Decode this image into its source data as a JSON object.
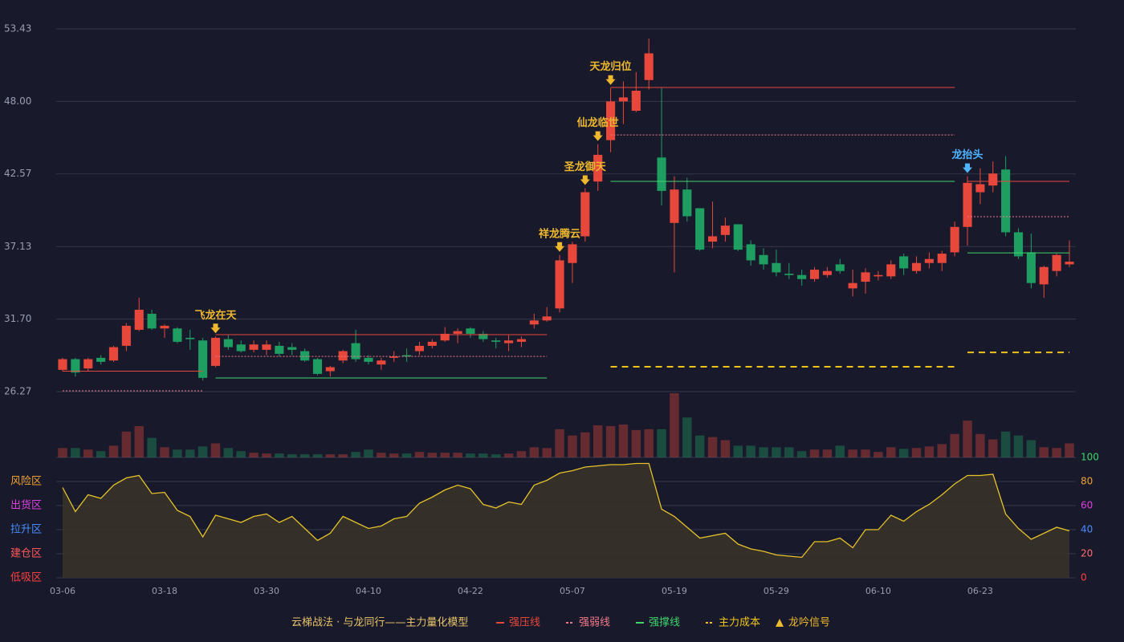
{
  "chart_data": [
    {
      "type": "candlestick",
      "categories": [
        "03-06",
        null,
        null,
        null,
        null,
        null,
        null,
        null,
        "03-18",
        null,
        null,
        null,
        null,
        null,
        null,
        null,
        "03-30",
        null,
        null,
        null,
        null,
        null,
        null,
        null,
        "04-10",
        null,
        null,
        null,
        null,
        null,
        null,
        null,
        "04-22",
        null,
        null,
        null,
        null,
        null,
        null,
        null,
        "05-07",
        null,
        null,
        null,
        null,
        null,
        null,
        null,
        "05-19",
        null,
        null,
        null,
        null,
        null,
        null,
        null,
        "05-29",
        null,
        null,
        null,
        null,
        null,
        null,
        null,
        "06-10",
        null,
        null,
        null,
        null,
        null,
        null,
        null,
        "06-23",
        null,
        null,
        null,
        null,
        null,
        null,
        null
      ],
      "open": [
        27.9,
        28.7,
        28.0,
        28.8,
        28.6,
        29.7,
        30.9,
        32.1,
        31.0,
        31.0,
        30.3,
        30.1,
        28.2,
        30.2,
        29.8,
        29.4,
        29.4,
        29.7,
        29.6,
        29.3,
        28.7,
        27.8,
        28.6,
        29.9,
        28.8,
        28.3,
        28.8,
        29.0,
        29.3,
        29.7,
        30.1,
        30.6,
        31.0,
        30.6,
        30.1,
        29.9,
        30.0,
        31.3,
        31.6,
        32.5,
        35.9,
        37.9,
        42.0,
        45.1,
        48.0,
        47.3,
        49.6,
        43.8,
        38.9,
        41.4,
        40.0,
        37.5,
        38.0,
        38.8,
        37.3,
        36.5,
        35.9,
        35.1,
        35.0,
        34.7,
        35.0,
        35.8,
        34.0,
        34.5,
        34.9,
        34.9,
        36.4,
        35.3,
        35.9,
        35.9,
        36.7,
        38.6,
        41.2,
        41.7,
        42.9,
        38.2,
        36.7,
        34.3,
        35.3,
        35.8
      ],
      "high": [
        28.8,
        28.8,
        28.8,
        29.0,
        29.7,
        31.4,
        33.3,
        32.4,
        31.3,
        31.1,
        30.9,
        30.3,
        30.4,
        30.5,
        30.1,
        30.1,
        30.1,
        30.0,
        29.9,
        29.5,
        28.8,
        28.2,
        29.4,
        30.9,
        29.0,
        28.8,
        29.3,
        29.5,
        30.0,
        30.2,
        31.1,
        31.0,
        31.1,
        30.8,
        30.3,
        30.5,
        30.4,
        32.1,
        32.6,
        36.5,
        37.5,
        41.5,
        44.8,
        49.0,
        49.5,
        50.2,
        52.7,
        49.0,
        42.4,
        42.3,
        40.0,
        40.5,
        39.3,
        38.8,
        37.6,
        37.0,
        36.9,
        35.9,
        35.4,
        35.6,
        35.6,
        36.2,
        35.4,
        35.5,
        35.3,
        36.1,
        36.6,
        36.4,
        36.7,
        36.8,
        39.0,
        42.4,
        43.0,
        43.5,
        43.9,
        38.5,
        38.1,
        35.7,
        36.6,
        37.6
      ],
      "low": [
        27.8,
        27.4,
        27.8,
        28.3,
        28.5,
        29.3,
        30.8,
        30.9,
        30.3,
        29.9,
        29.4,
        27.1,
        28.1,
        29.4,
        29.2,
        29.2,
        29.0,
        28.9,
        29.0,
        28.5,
        27.5,
        27.4,
        28.4,
        28.5,
        28.3,
        27.9,
        28.5,
        28.5,
        29.0,
        29.5,
        30.0,
        29.9,
        30.3,
        30.0,
        29.5,
        29.3,
        29.6,
        31.0,
        31.5,
        32.2,
        34.4,
        37.5,
        41.3,
        44.2,
        46.3,
        47.2,
        48.9,
        40.2,
        35.2,
        39.0,
        36.8,
        37.0,
        37.5,
        36.8,
        35.7,
        35.4,
        34.9,
        34.7,
        34.2,
        34.5,
        34.8,
        35.1,
        33.4,
        33.6,
        34.6,
        34.7,
        35.0,
        35.1,
        35.5,
        35.3,
        36.4,
        37.2,
        40.3,
        41.2,
        37.9,
        36.2,
        34.0,
        33.3,
        34.9,
        35.6
      ],
      "close": [
        28.7,
        27.7,
        28.7,
        28.5,
        29.6,
        31.2,
        32.4,
        31.0,
        31.2,
        30.0,
        30.2,
        27.3,
        30.3,
        29.6,
        29.3,
        29.8,
        29.8,
        29.1,
        29.4,
        28.6,
        27.6,
        28.1,
        29.3,
        28.7,
        28.5,
        28.6,
        28.9,
        28.9,
        29.7,
        30.0,
        30.6,
        30.8,
        30.6,
        30.2,
        30.0,
        30.1,
        30.2,
        31.6,
        31.9,
        36.1,
        37.3,
        41.2,
        44.0,
        48.0,
        48.3,
        48.8,
        51.6,
        41.3,
        41.4,
        39.4,
        36.9,
        37.9,
        38.7,
        36.9,
        36.1,
        35.8,
        35.2,
        35.0,
        34.7,
        35.4,
        35.3,
        35.3,
        34.4,
        35.2,
        35.0,
        35.8,
        35.5,
        35.9,
        36.2,
        36.6,
        38.6,
        41.9,
        41.8,
        42.6,
        38.2,
        36.4,
        34.4,
        35.6,
        36.5,
        36.0
      ],
      "up_color": "#e8473b",
      "down_color": "#1f9e62",
      "ylim": [
        26.27,
        53.43
      ],
      "yticks": [
        26.27,
        {
          "value": 31.7,
          "label": "31.70"
        },
        37.13,
        42.57,
        {
          "value": 48,
          "label": "48.00"
        },
        53.43
      ],
      "grid": true,
      "levels": [
        {
          "name": "强压线",
          "color": "#e8473b",
          "style": "solid",
          "segments": [
            {
              "from": 0,
              "to": 11,
              "value": 27.8
            },
            {
              "from": 12,
              "to": 38,
              "value": 30.54
            },
            {
              "from": 43,
              "to": 70,
              "value": 49.04
            },
            {
              "from": 71,
              "to": 79,
              "value": 42.01
            }
          ]
        },
        {
          "name": "强弱线",
          "color": "#f47a8a",
          "style": "dotted",
          "segments": [
            {
              "from": 0,
              "to": 11,
              "value": 26.33
            },
            {
              "from": 12,
              "to": 38,
              "value": 28.91
            },
            {
              "from": 43,
              "to": 70,
              "value": 45.49
            },
            {
              "from": 71,
              "to": 79,
              "value": 39.37
            }
          ]
        },
        {
          "name": "强撑线",
          "color": "#3fd46a",
          "style": "solid",
          "segments": [
            {
              "from": 12,
              "to": 38,
              "value": 27.29
            },
            {
              "from": 43,
              "to": 70,
              "value": 42.01
            },
            {
              "from": 71,
              "to": 79,
              "value": 36.66
            }
          ]
        },
        {
          "name": "主力成本",
          "color": "#f0c419",
          "style": "dashed",
          "segments": [
            {
              "from": 43,
              "to": 70,
              "value": 28.13
            },
            {
              "from": 71,
              "to": 79,
              "value": 29.21
            }
          ]
        }
      ],
      "signals": {
        "name": "龙吟信号",
        "color": "#f0b92d",
        "marks": [
          {
            "index": 12,
            "text": "飞龙在天"
          },
          {
            "index": 39,
            "text": "祥龙腾云"
          },
          {
            "index": 41,
            "text": "圣龙御天"
          },
          {
            "index": 42,
            "text": "仙龙临世"
          },
          {
            "index": 43,
            "text": "天龙归位"
          },
          {
            "index": 71,
            "text": "龙抬头",
            "color": "#4fb3ff"
          }
        ]
      },
      "legend_title": "云梯战法 · 与龙同行——主力量化模型",
      "legend_color": "#e8c36a"
    },
    {
      "type": "bar",
      "values": [
        12,
        12,
        10,
        8,
        15,
        33,
        40,
        25,
        13,
        10,
        10,
        14,
        18,
        12,
        8,
        6,
        5,
        5,
        4,
        4,
        4,
        4,
        4,
        7,
        10,
        6,
        5,
        5,
        7,
        6,
        6,
        6,
        5,
        5,
        4,
        5,
        8,
        13,
        12,
        36,
        28,
        32,
        41,
        40,
        42,
        35,
        36,
        36,
        82,
        51,
        28,
        26,
        22,
        15,
        15,
        13,
        13,
        13,
        8,
        10,
        10,
        15,
        10,
        10,
        7,
        13,
        11,
        12,
        14,
        17,
        30,
        47,
        30,
        23,
        33,
        28,
        22,
        13,
        12,
        18
      ]
    },
    {
      "type": "line",
      "color": "#e6c229",
      "fill": "#3a3428",
      "values": [
        75,
        55,
        69,
        66,
        77,
        83,
        85,
        70,
        71,
        56,
        51,
        34,
        52,
        49,
        46,
        51,
        53,
        46,
        51,
        41,
        31,
        37,
        51,
        46,
        41,
        43,
        49,
        51,
        62,
        67,
        73,
        77,
        74,
        61,
        58,
        63,
        61,
        77,
        81,
        87,
        89,
        92,
        93,
        94,
        94,
        95,
        95,
        57,
        51,
        42,
        33,
        35,
        37,
        28,
        24,
        22,
        19,
        18,
        17,
        30,
        30,
        33,
        25,
        40,
        40,
        52,
        47,
        55,
        61,
        69,
        78,
        85,
        85,
        86,
        53,
        41,
        32,
        37,
        42,
        39
      ],
      "ylim": [
        0,
        100
      ],
      "yticks": [
        0,
        20,
        40,
        60,
        80,
        100
      ],
      "ytick_colors": [
        "#ff4040",
        "#ff6b6b",
        "#4a8cff",
        "#e040e0",
        "#f0a030",
        "#3fd46a"
      ],
      "zones": [
        {
          "label": "风险区",
          "value": 80,
          "color": "#f0a030"
        },
        {
          "label": "出货区",
          "value": 60,
          "color": "#e040e0"
        },
        {
          "label": "拉升区",
          "value": 40,
          "color": "#4a8cff"
        },
        {
          "label": "建仓区",
          "value": 20,
          "color": "#ff5a5a"
        },
        {
          "label": "低吸区",
          "value": 0,
          "color": "#ff4040"
        }
      ]
    }
  ]
}
